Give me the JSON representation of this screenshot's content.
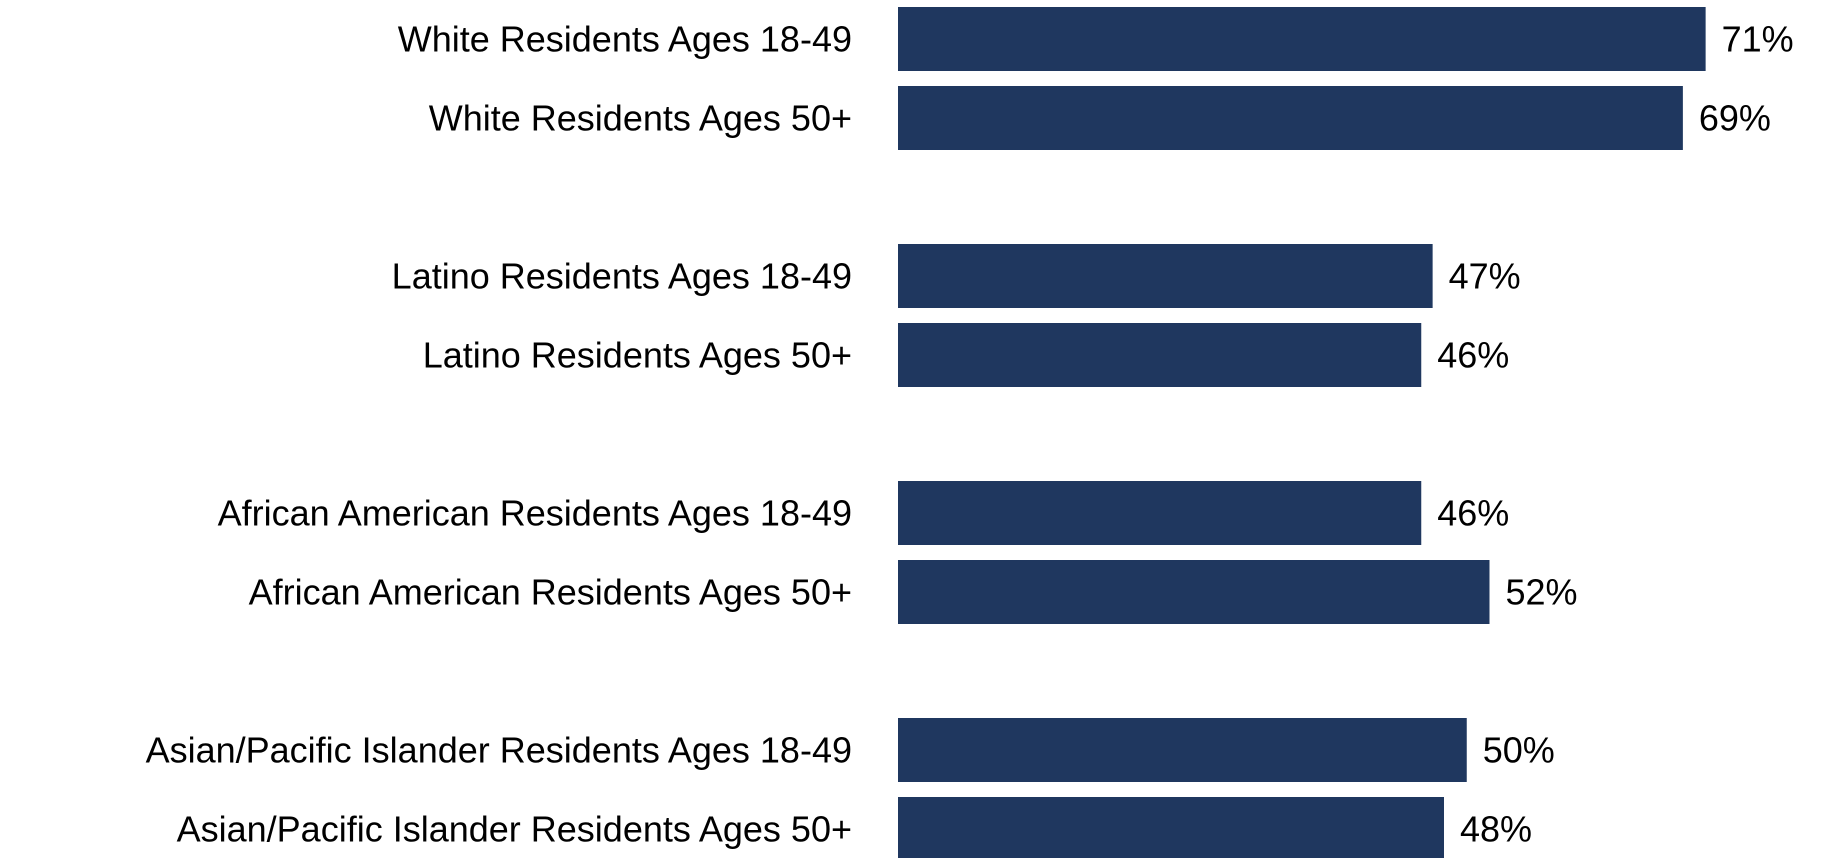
{
  "chart_data": {
    "type": "bar",
    "orientation": "horizontal",
    "categories": [
      "White Residents Ages 18-49",
      "White Residents Ages 50+",
      "Latino Residents Ages 18-49",
      "Latino Residents Ages 50+",
      "African American Residents Ages 18-49",
      "African American Residents Ages 50+",
      "Asian/Pacific Islander Residents Ages 18-49",
      "Asian/Pacific Islander Residents Ages 50+"
    ],
    "values": [
      71,
      69,
      47,
      46,
      46,
      52,
      50,
      48
    ],
    "value_labels": [
      "71%",
      "69%",
      "47%",
      "46%",
      "46%",
      "52%",
      "50%",
      "48%"
    ],
    "groups": [
      [
        "White Residents Ages 18-49",
        "White Residents Ages 50+"
      ],
      [
        "Latino Residents Ages 18-49",
        "Latino Residents Ages 50+"
      ],
      [
        "African American Residents Ages 18-49",
        "African American Residents Ages 50+"
      ],
      [
        "Asian/Pacific Islander Residents Ages 18-49",
        "Asian/Pacific Islander Residents Ages 50+"
      ]
    ],
    "xlim": [
      0,
      100
    ],
    "title": "",
    "xlabel": "",
    "ylabel": "",
    "grid": false,
    "legend": "none",
    "bar_color": "#1f375f"
  }
}
